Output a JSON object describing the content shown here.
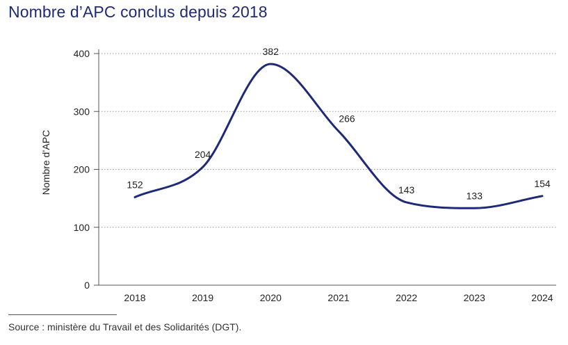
{
  "title": "Nombre d’APC conclus depuis 2018",
  "source": "Source : ministère du Travail et des Solidarités (DGT).",
  "colors": {
    "line": "#1e2a78",
    "title": "#1e2a78",
    "grid": "#9a9a9a"
  },
  "chart_data": {
    "type": "line",
    "title": "Nombre d’APC conclus depuis 2018",
    "xlabel": "",
    "ylabel": "Nombre d’APC",
    "categories": [
      "2018",
      "2019",
      "2020",
      "2021",
      "2022",
      "2023",
      "2024"
    ],
    "series": [
      {
        "values": [
          152,
          204,
          382,
          266,
          143,
          133,
          154
        ]
      }
    ],
    "yticks": [
      0,
      100,
      200,
      300,
      400
    ],
    "ylim": [
      0,
      400
    ],
    "grid": "horizontal dotted",
    "smooth": true,
    "data_labels": true
  }
}
